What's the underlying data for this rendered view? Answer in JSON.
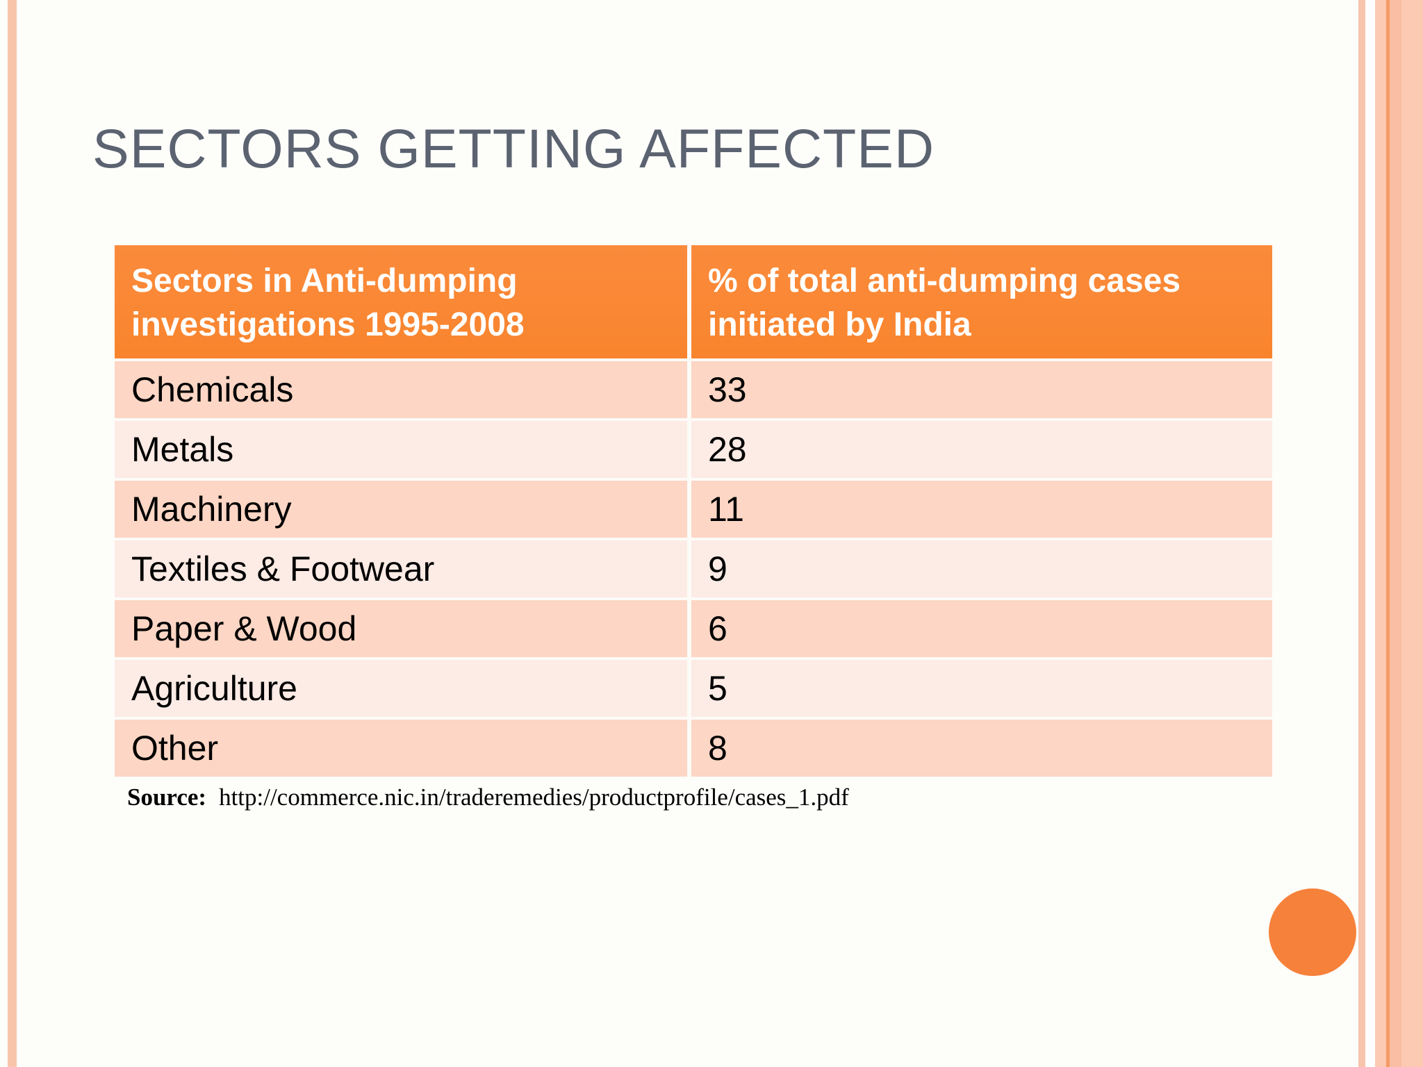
{
  "slide": {
    "title": "SECTORS GETTING AFFECTED",
    "source_label": "Source:",
    "source_url": "http://commerce.nic.in/traderemedies/productprofile/cases_1.pdf"
  },
  "table": {
    "headers": [
      "Sectors in Anti-dumping investigations 1995-2008",
      "% of total anti-dumping cases initiated by India"
    ],
    "rows": [
      {
        "sector": "Chemicals",
        "value": "33"
      },
      {
        "sector": "Metals",
        "value": "28"
      },
      {
        "sector": "Machinery",
        "value": "11"
      },
      {
        "sector": "Textiles & Footwear",
        "value": "9"
      },
      {
        "sector": "Paper & Wood",
        "value": "6"
      },
      {
        "sector": "Agriculture",
        "value": "5"
      },
      {
        "sector": "Other",
        "value": "8"
      }
    ]
  },
  "chart_data": {
    "type": "table",
    "title": "Sectors in Anti-dumping investigations 1995-2008",
    "columns": [
      "Sectors in Anti-dumping investigations 1995-2008",
      "% of total anti-dumping cases initiated by India"
    ],
    "categories": [
      "Chemicals",
      "Metals",
      "Machinery",
      "Textiles & Footwear",
      "Paper & Wood",
      "Agriculture",
      "Other"
    ],
    "values": [
      33,
      28,
      11,
      9,
      6,
      5,
      8
    ]
  },
  "colors": {
    "header_orange": "#f98834",
    "row_dark_pink": "#fdd6c5",
    "row_light_pink": "#fdebe5",
    "title_gray": "#5b6270",
    "circle_orange": "#f6813a",
    "border_stripe_salmon": "#f8c5ab"
  }
}
